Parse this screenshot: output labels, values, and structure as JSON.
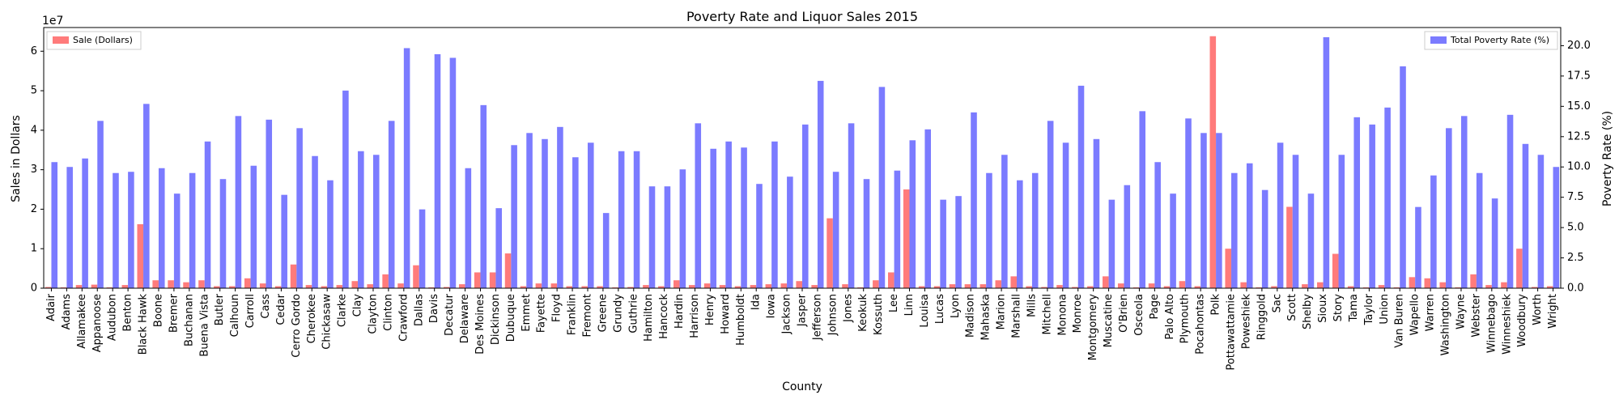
{
  "chart_data": {
    "type": "bar",
    "title": "Poverty Rate and Liquor Sales 2015",
    "xlabel": "County",
    "ylabel_left": "Sales in Dollars",
    "ylabel_right": "Poverty Rate (%)",
    "left_axis_multiplier": "1e7",
    "ylim_left": [
      0,
      6.6
    ],
    "ylim_right": [
      0,
      21.5
    ],
    "left_ticks": [
      0,
      1,
      2,
      3,
      4,
      5,
      6
    ],
    "right_ticks": [
      "0.0",
      "2.5",
      "5.0",
      "7.5",
      "10.0",
      "12.5",
      "15.0",
      "17.5",
      "20.0"
    ],
    "grid": false,
    "categories": [
      "Adair",
      "Adams",
      "Allamakee",
      "Appanoose",
      "Audubon",
      "Benton",
      "Black Hawk",
      "Boone",
      "Bremer",
      "Buchanan",
      "Buena Vista",
      "Butler",
      "Calhoun",
      "Carroll",
      "Cass",
      "Cedar",
      "Cerro Gordo",
      "Cherokee",
      "Chickasaw",
      "Clarke",
      "Clay",
      "Clayton",
      "Clinton",
      "Crawford",
      "Dallas",
      "Davis",
      "Decatur",
      "Delaware",
      "Des Moines",
      "Dickinson",
      "Dubuque",
      "Emmet",
      "Fayette",
      "Floyd",
      "Franklin",
      "Fremont",
      "Greene",
      "Grundy",
      "Guthrie",
      "Hamilton",
      "Hancock",
      "Hardin",
      "Harrison",
      "Henry",
      "Howard",
      "Humboldt",
      "Ida",
      "Iowa",
      "Jackson",
      "Jasper",
      "Jefferson",
      "Johnson",
      "Jones",
      "Keokuk",
      "Kossuth",
      "Lee",
      "Linn",
      "Louisa",
      "Lucas",
      "Lyon",
      "Madison",
      "Mahaska",
      "Marion",
      "Marshall",
      "Mills",
      "Mitchell",
      "Monona",
      "Monroe",
      "Montgomery",
      "Muscatine",
      "O'Brien",
      "Osceola",
      "Page",
      "Palo Alto",
      "Plymouth",
      "Pocahontas",
      "Polk",
      "Pottawattamie",
      "Poweshiek",
      "Ringgold",
      "Sac",
      "Scott",
      "Shelby",
      "Sioux",
      "Story",
      "Tama",
      "Taylor",
      "Union",
      "Van Buren",
      "Wapello",
      "Warren",
      "Washington",
      "Wayne",
      "Webster",
      "Winnebago",
      "Winneshiek",
      "Woodbury",
      "Worth",
      "Wright"
    ],
    "series": [
      {
        "name": "Sale (Dollars)",
        "axis": "left",
        "color": "#ff7b7b",
        "values": [
          0.03,
          0.02,
          0.08,
          0.09,
          0.02,
          0.08,
          1.62,
          0.2,
          0.2,
          0.15,
          0.2,
          0.05,
          0.05,
          0.25,
          0.12,
          0.05,
          0.6,
          0.08,
          0.05,
          0.08,
          0.18,
          0.1,
          0.35,
          0.12,
          0.58,
          0.02,
          0.03,
          0.1,
          0.4,
          0.4,
          0.88,
          0.05,
          0.12,
          0.12,
          0.05,
          0.05,
          0.05,
          0.02,
          0.03,
          0.08,
          0.05,
          0.2,
          0.08,
          0.12,
          0.08,
          0.05,
          0.08,
          0.1,
          0.12,
          0.18,
          0.08,
          1.77,
          0.1,
          0.02,
          0.2,
          0.4,
          2.5,
          0.05,
          0.05,
          0.1,
          0.1,
          0.1,
          0.2,
          0.3,
          0.05,
          0.03,
          0.08,
          0.03,
          0.05,
          0.3,
          0.12,
          0.02,
          0.12,
          0.05,
          0.18,
          0.05,
          6.38,
          1.0,
          0.15,
          0.02,
          0.05,
          2.06,
          0.1,
          0.15,
          0.87,
          0.05,
          0.02,
          0.08,
          0.02,
          0.28,
          0.25,
          0.15,
          0.02,
          0.35,
          0.08,
          0.15,
          1.0,
          0.03,
          0.05
        ]
      },
      {
        "name": "Total Poverty Rate (%)",
        "axis": "right",
        "color": "#7b7bff",
        "values": [
          10.4,
          10.0,
          10.7,
          13.8,
          9.5,
          9.6,
          15.2,
          9.9,
          7.8,
          9.5,
          12.1,
          9.0,
          14.2,
          10.1,
          13.9,
          7.7,
          13.2,
          10.9,
          8.9,
          16.3,
          11.3,
          11.0,
          13.8,
          19.8,
          6.5,
          19.3,
          19.0,
          9.9,
          15.1,
          6.6,
          11.8,
          12.8,
          12.3,
          13.3,
          10.8,
          12.0,
          6.2,
          11.3,
          11.3,
          8.4,
          8.4,
          9.8,
          13.6,
          11.5,
          12.1,
          11.6,
          8.6,
          12.1,
          9.2,
          13.5,
          17.1,
          9.6,
          13.6,
          9.0,
          16.6,
          9.7,
          12.2,
          13.1,
          7.3,
          7.6,
          14.5,
          9.5,
          11.0,
          8.9,
          9.5,
          13.8,
          12.0,
          16.7,
          12.3,
          7.3,
          8.5,
          14.6,
          10.4,
          7.8,
          14.0,
          12.8,
          12.8,
          9.5,
          10.3,
          8.1,
          12.0,
          11.0,
          7.8,
          20.7,
          11.0,
          14.1,
          13.5,
          14.9,
          18.3,
          6.7,
          9.3,
          13.2,
          14.2,
          9.5,
          7.4,
          14.3,
          11.9,
          11.0,
          10.0
        ]
      }
    ],
    "legend_left": {
      "label": "Sale (Dollars)",
      "placement": "top-left"
    },
    "legend_right": {
      "label": "Total Poverty Rate (%)",
      "placement": "top-right"
    }
  }
}
